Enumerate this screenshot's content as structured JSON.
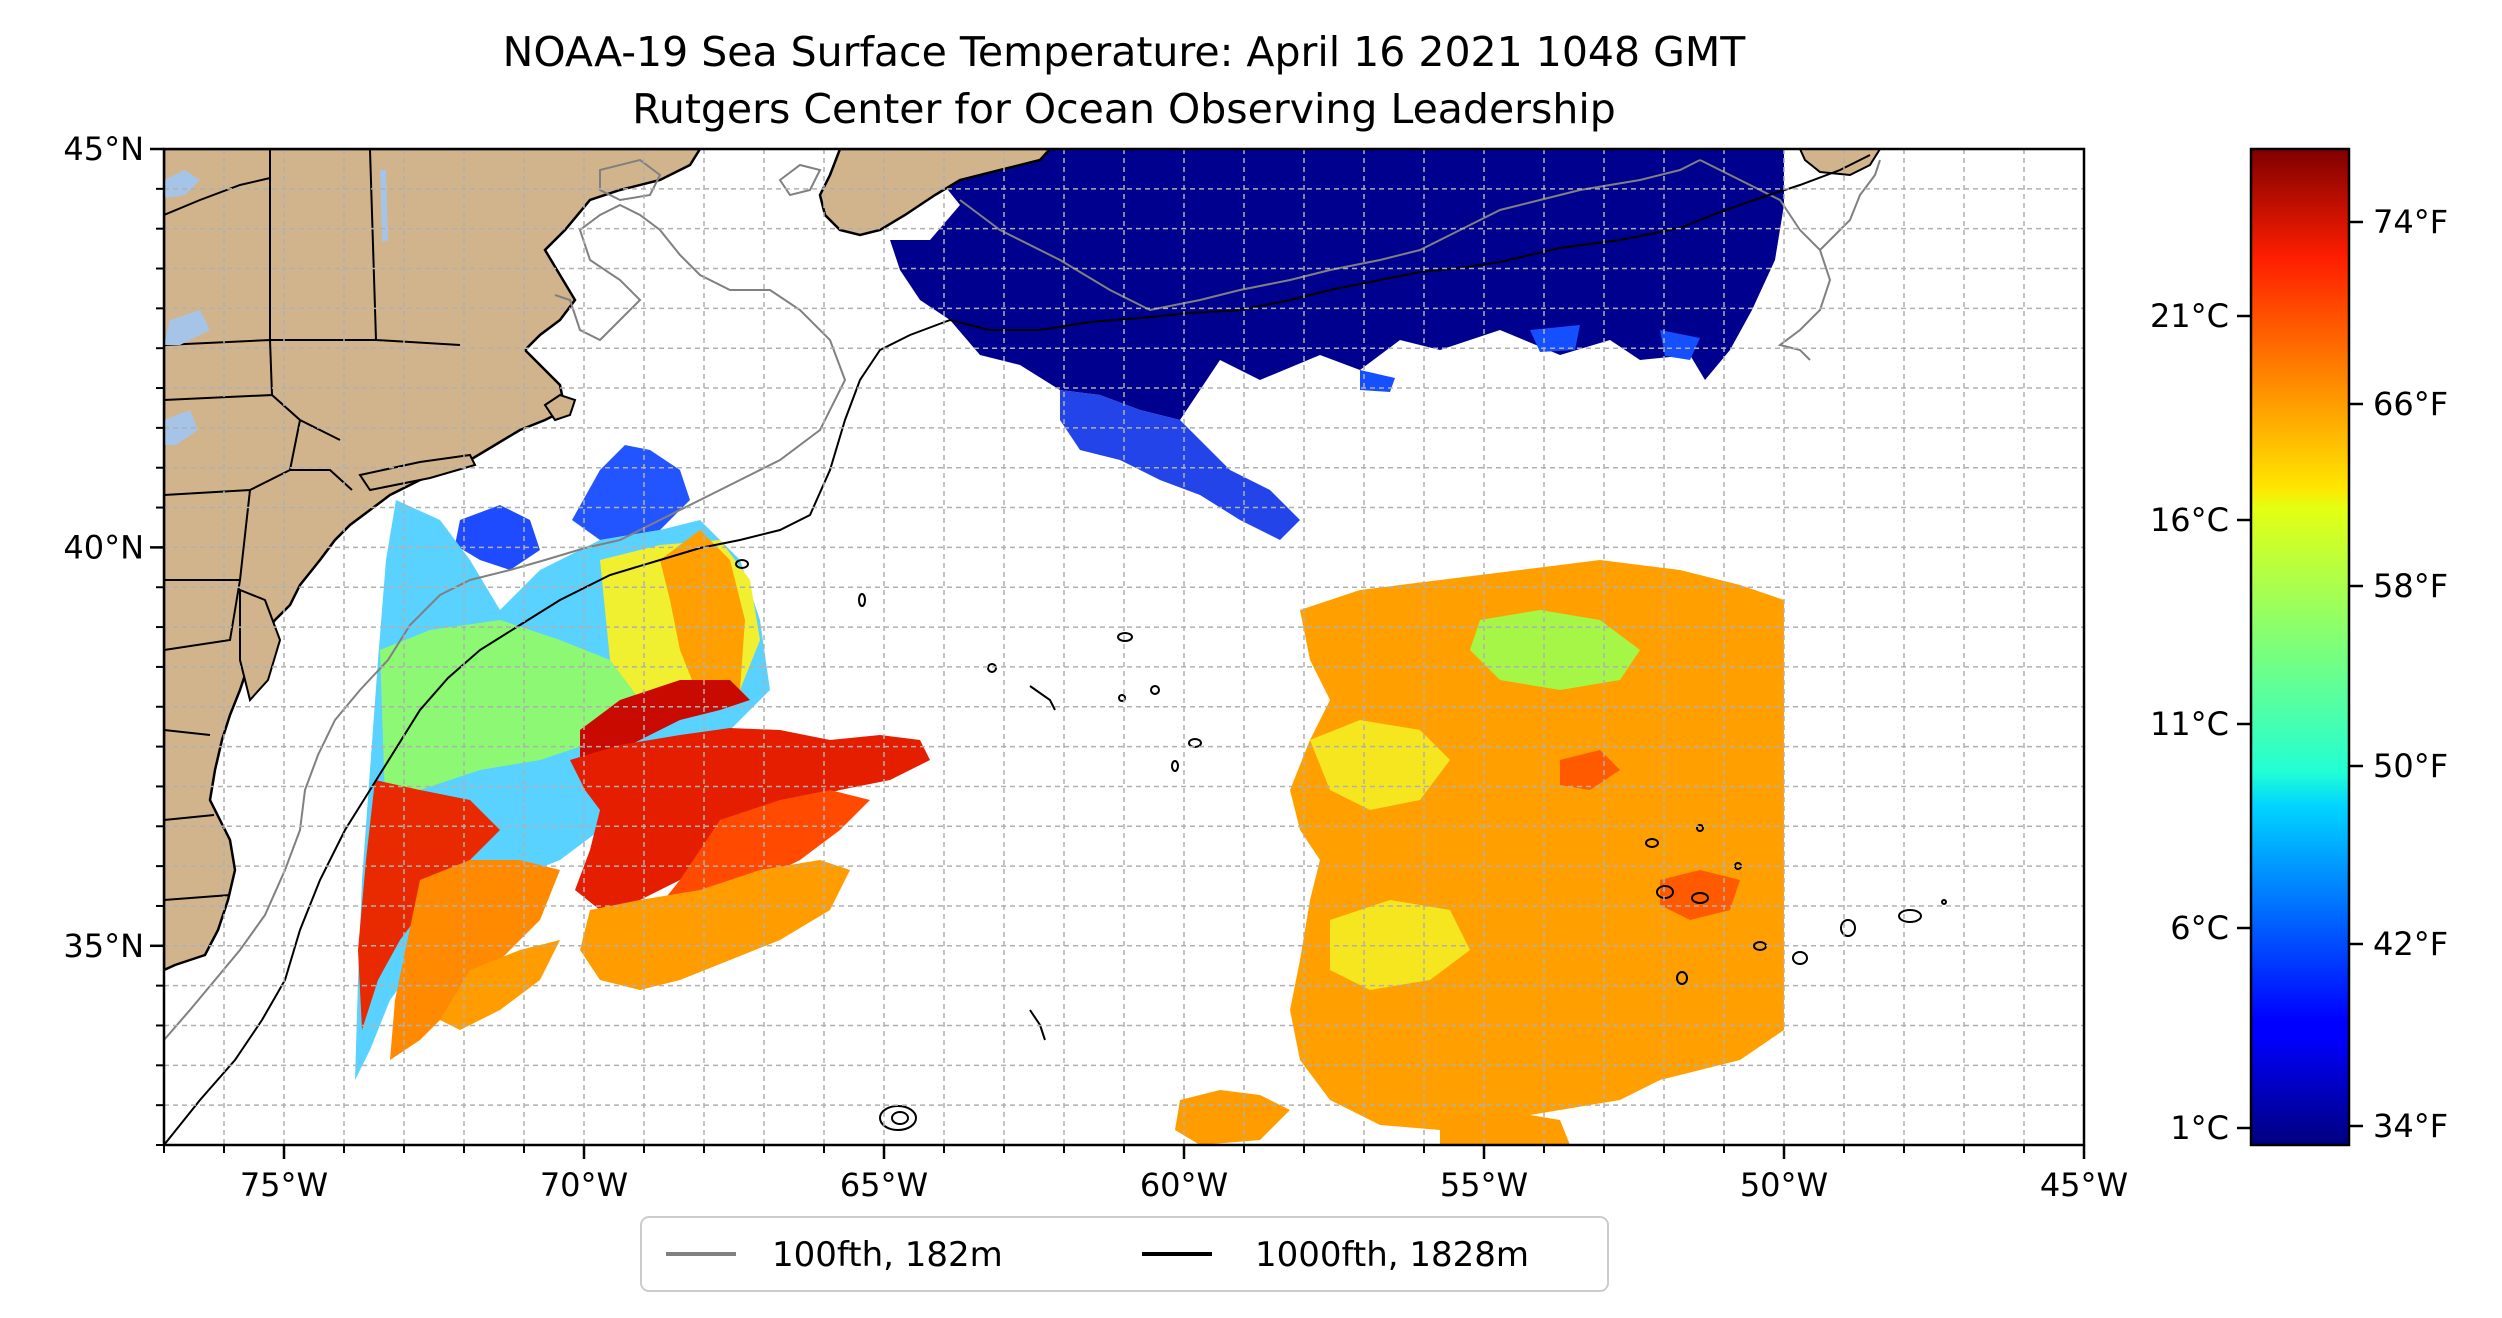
{
  "figure": {
    "title_line1": "NOAA-19 Sea Surface Temperature: April 16 2021 1048 GMT",
    "title_line2": "Rutgers Center for Ocean Observing Leadership"
  },
  "map": {
    "lon_range": [
      -77,
      -45
    ],
    "lat_range": [
      32.5,
      45
    ],
    "x_ticks": [
      {
        "lon": -75,
        "label": "75°W"
      },
      {
        "lon": -70,
        "label": "70°W"
      },
      {
        "lon": -65,
        "label": "65°W"
      },
      {
        "lon": -60,
        "label": "60°W"
      },
      {
        "lon": -55,
        "label": "55°W"
      },
      {
        "lon": -50,
        "label": "50°W"
      },
      {
        "lon": -45,
        "label": "45°W"
      }
    ],
    "y_ticks": [
      {
        "lat": 35,
        "label": "35°N"
      },
      {
        "lat": 40,
        "label": "40°N"
      },
      {
        "lat": 45,
        "label": "45°N"
      }
    ],
    "grid": "dashed",
    "colors": {
      "land": "#d2b48c",
      "lakes": "#a6c4e8",
      "contour_100fth": "#808080",
      "contour_1000fth": "#000000"
    }
  },
  "legend": {
    "placement": "bottom-center",
    "entries": [
      {
        "label": "100fth, 182m",
        "color": "#808080"
      },
      {
        "label": "1000fth, 1828m",
        "color": "#000000"
      }
    ]
  },
  "colorbar": {
    "colormap": "jet",
    "celsius_ticks": [
      "21°C",
      "16°C",
      "11°C",
      "6°C",
      "1°C"
    ],
    "fahrenheit_ticks": [
      "74°F",
      "66°F",
      "58°F",
      "50°F",
      "42°F",
      "34°F"
    ]
  }
}
